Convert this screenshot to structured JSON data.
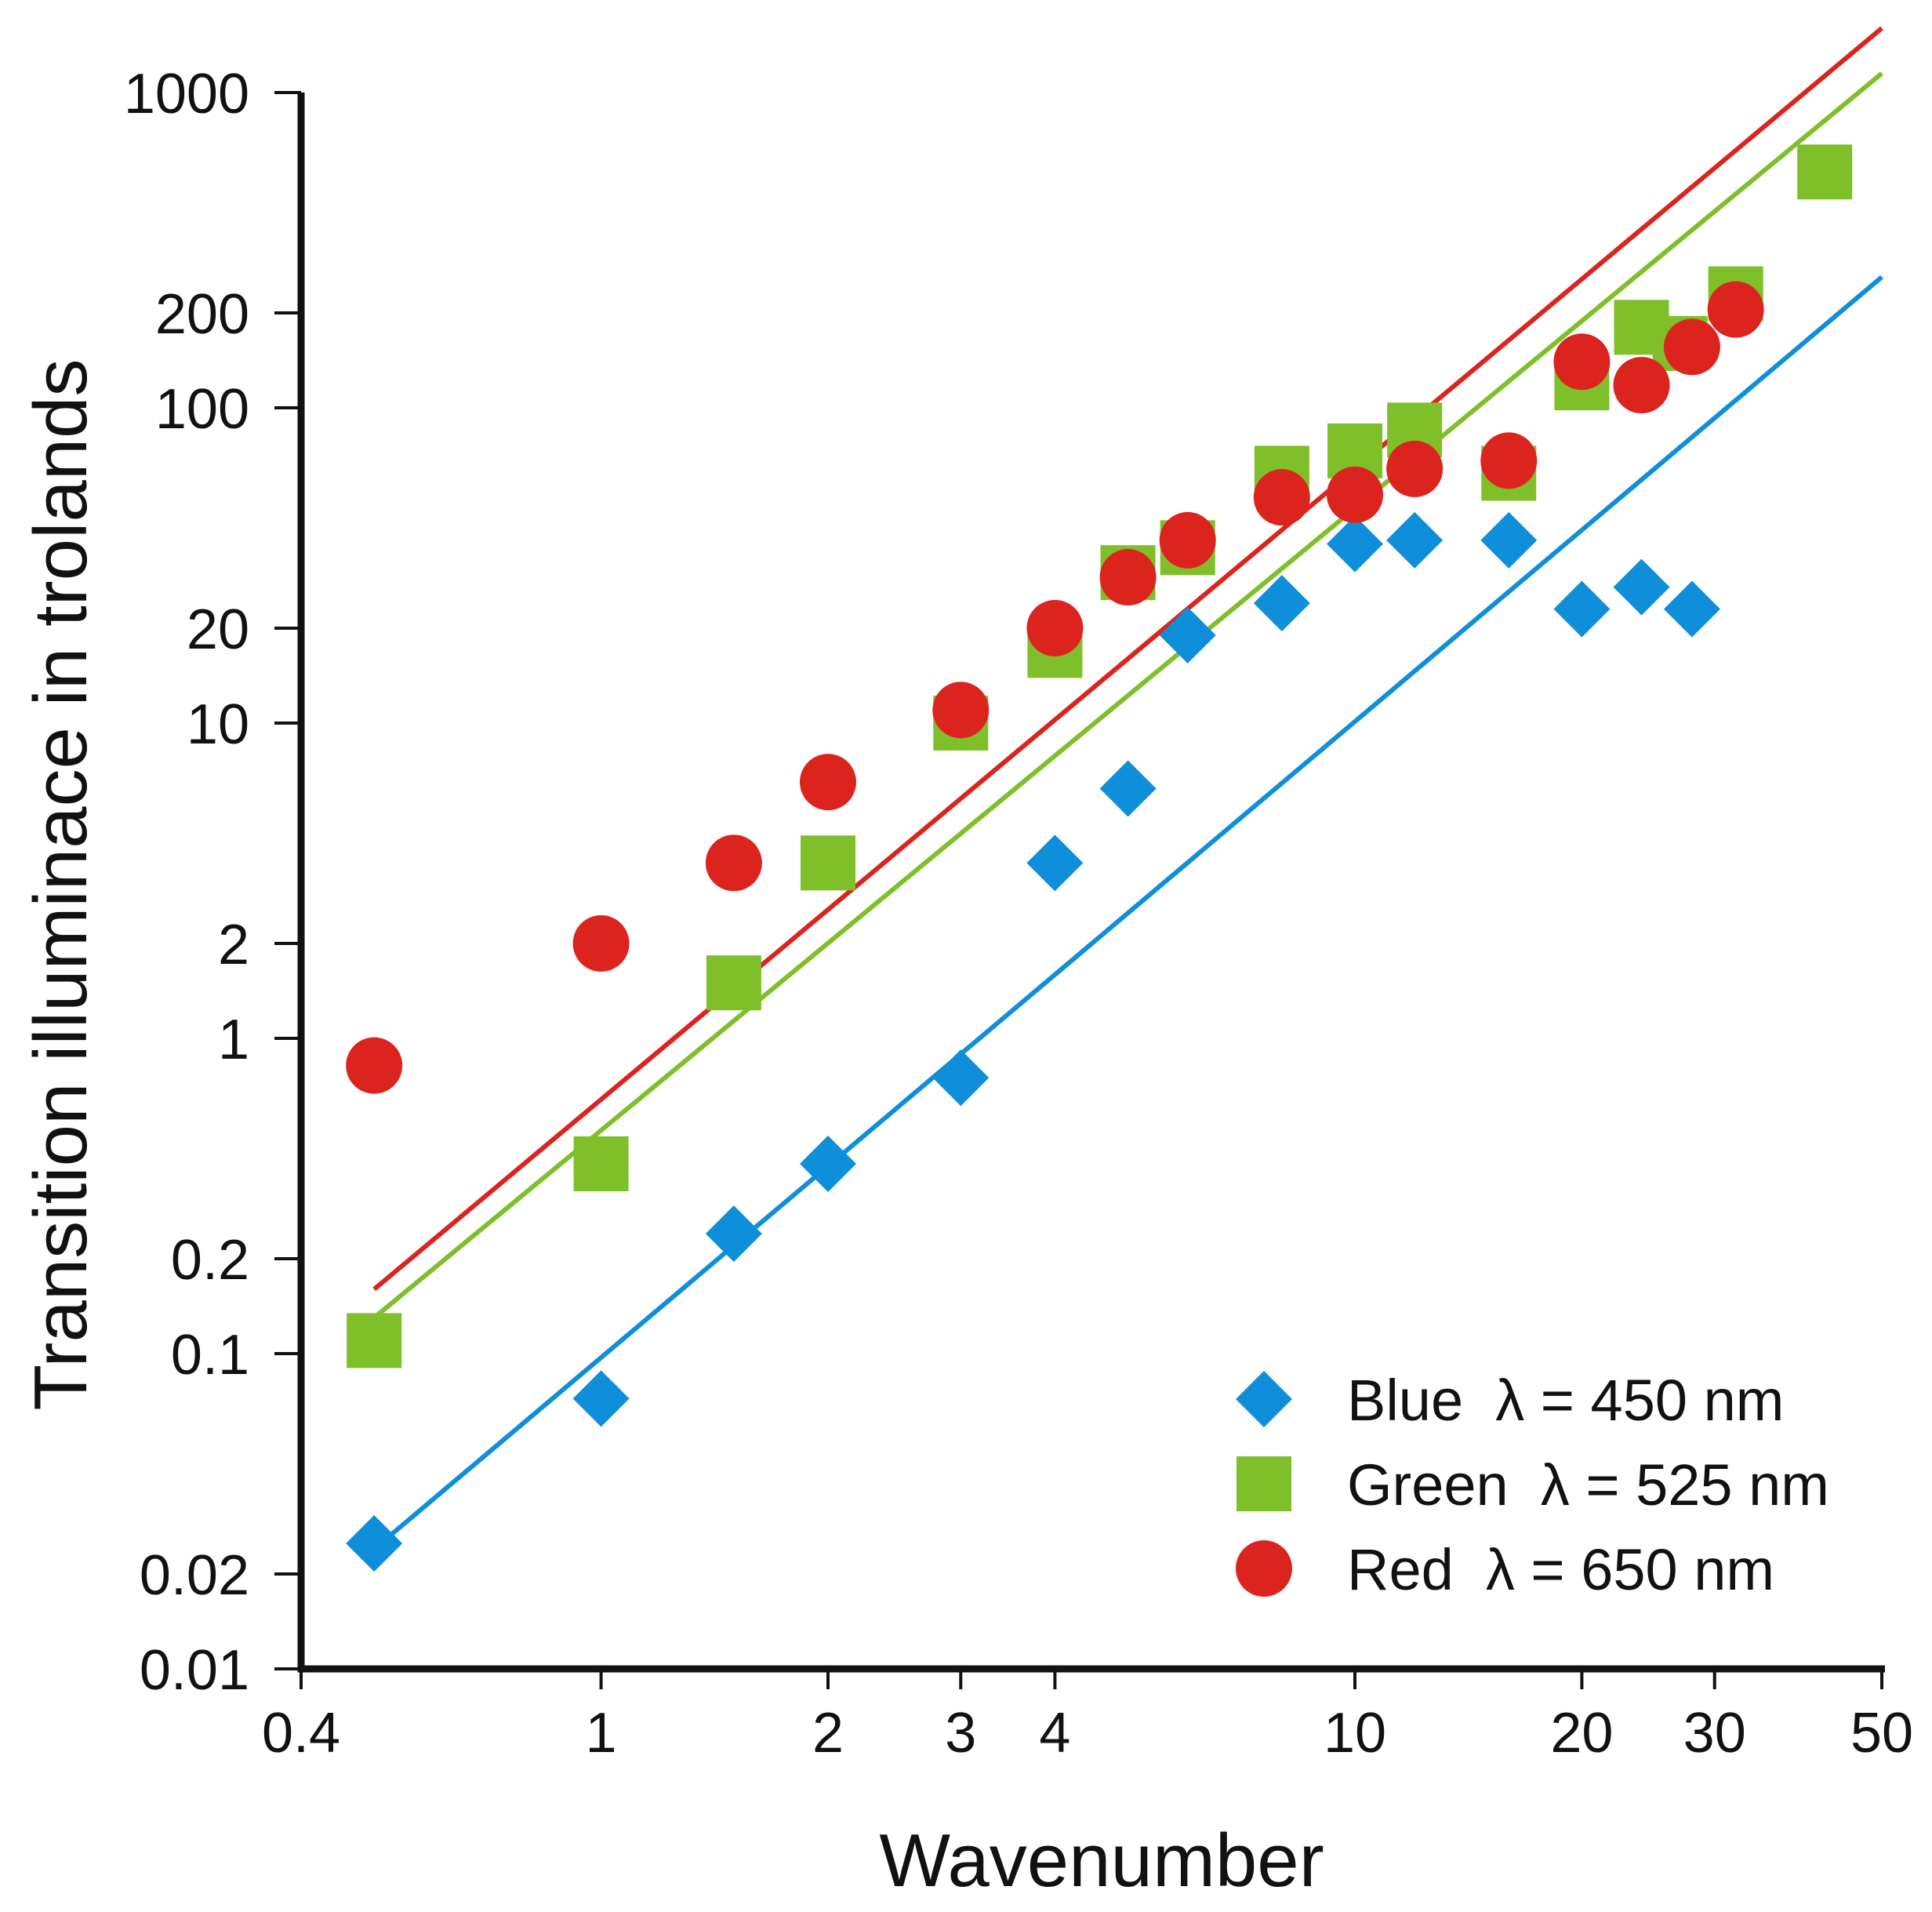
{
  "chart_data": {
    "type": "scatter",
    "xlabel": "Wavenumber",
    "ylabel": "Transition illuminace in trolands",
    "x_scale": "log",
    "y_scale": "log",
    "xlim": [
      0.4,
      50
    ],
    "ylim": [
      0.01,
      1000
    ],
    "x_ticks": [
      0.4,
      1,
      2,
      3,
      4,
      10,
      20,
      30,
      50
    ],
    "x_tick_labels": [
      "0.4",
      "1",
      "2",
      "3",
      "4",
      "10",
      "20",
      "30",
      "50"
    ],
    "y_ticks": [
      0.01,
      0.02,
      0.1,
      0.2,
      1,
      2,
      10,
      20,
      100,
      200,
      1000
    ],
    "y_tick_labels": [
      "0.01",
      "0.02",
      "0.1",
      "0.2",
      "1",
      "2",
      "10",
      "20",
      "100",
      "200",
      "1000"
    ],
    "grid": false,
    "legend_position": "bottom-right",
    "series": [
      {
        "name": "Blue  λ = 450 nm",
        "color": "#0f8fd9",
        "marker": "diamond",
        "points": [
          [
            0.5,
            0.025
          ],
          [
            1,
            0.072
          ],
          [
            1.5,
            0.24
          ],
          [
            2,
            0.4
          ],
          [
            3,
            0.75
          ],
          [
            4,
            3.6
          ],
          [
            5,
            6.2
          ],
          [
            6,
            19
          ],
          [
            8,
            24
          ],
          [
            10,
            37
          ],
          [
            12,
            38
          ],
          [
            16,
            38
          ],
          [
            20,
            23
          ],
          [
            24,
            27
          ],
          [
            28,
            23
          ]
        ],
        "fit": [
          [
            0.5,
            0.024
          ],
          [
            50,
            260
          ]
        ]
      },
      {
        "name": "Green  λ = 525 nm",
        "color": "#7fbf29",
        "marker": "square",
        "points": [
          [
            0.5,
            0.11
          ],
          [
            1,
            0.4
          ],
          [
            1.5,
            1.5
          ],
          [
            2,
            3.6
          ],
          [
            3,
            10
          ],
          [
            4,
            17
          ],
          [
            5,
            30
          ],
          [
            6,
            36
          ],
          [
            8,
            62
          ],
          [
            10,
            73
          ],
          [
            12,
            85
          ],
          [
            16,
            62
          ],
          [
            20,
            120
          ],
          [
            24,
            180
          ],
          [
            27,
            160
          ],
          [
            32,
            230
          ],
          [
            42,
            560
          ]
        ],
        "fit": [
          [
            0.5,
            0.13
          ],
          [
            50,
            1150
          ]
        ]
      },
      {
        "name": "Red  λ = 650 nm",
        "color": "#dc241f",
        "marker": "circle",
        "points": [
          [
            0.5,
            0.82
          ],
          [
            1,
            2
          ],
          [
            1.5,
            3.6
          ],
          [
            2,
            6.5
          ],
          [
            3,
            11
          ],
          [
            4,
            20
          ],
          [
            5,
            29
          ],
          [
            6,
            38
          ],
          [
            8,
            52
          ],
          [
            10,
            53
          ],
          [
            12,
            64
          ],
          [
            16,
            68
          ],
          [
            20,
            140
          ],
          [
            24,
            118
          ],
          [
            28,
            156
          ],
          [
            32,
            205
          ]
        ],
        "fit": [
          [
            0.5,
            0.16
          ],
          [
            50,
            1600
          ]
        ]
      }
    ]
  }
}
